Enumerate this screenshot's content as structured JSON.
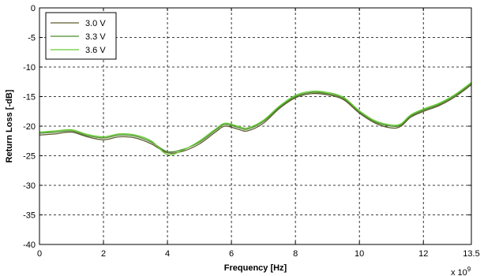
{
  "chart_data": {
    "type": "line",
    "title": "",
    "xlabel": "Frequency [Hz]",
    "ylabel": "Return Loss [-dB]",
    "x_exponent_label": "x 10",
    "x_exponent": "9",
    "xlim": [
      0,
      13.5
    ],
    "ylim": [
      -40,
      0
    ],
    "xticks": [
      "0",
      "2",
      "4",
      "6",
      "8",
      "10",
      "12",
      "13.5"
    ],
    "xtick_values": [
      0,
      2,
      4,
      6,
      8,
      10,
      12,
      13.5
    ],
    "yticks": [
      "0",
      "-5",
      "-10",
      "-15",
      "-20",
      "-25",
      "-30",
      "-35",
      "-40"
    ],
    "ytick_values": [
      0,
      -5,
      -10,
      -15,
      -20,
      -25,
      -30,
      -35,
      -40
    ],
    "grid": true,
    "legend_position": "top-left",
    "series": [
      {
        "name": "3.0 V",
        "color": "#5a5a2a",
        "x": [
          0,
          0.5,
          1.0,
          1.5,
          2.0,
          2.5,
          3.0,
          3.5,
          4.0,
          4.5,
          5.0,
          5.5,
          5.8,
          6.2,
          6.5,
          7.0,
          7.5,
          8.0,
          8.5,
          9.0,
          9.5,
          10.0,
          10.5,
          11.0,
          11.3,
          11.6,
          12.0,
          12.5,
          13.0,
          13.5
        ],
        "y": [
          -21.5,
          -21.3,
          -21.0,
          -21.8,
          -22.3,
          -21.8,
          -22.0,
          -23.0,
          -24.5,
          -24.2,
          -23.0,
          -21.0,
          -20.0,
          -20.5,
          -20.8,
          -19.5,
          -17.0,
          -15.2,
          -14.5,
          -14.7,
          -15.5,
          -17.8,
          -19.5,
          -20.3,
          -20.0,
          -18.5,
          -17.5,
          -16.5,
          -15.0,
          -13.0
        ]
      },
      {
        "name": "3.3 V",
        "color": "#4a8a2a",
        "x": [
          0,
          0.5,
          1.0,
          1.5,
          2.0,
          2.5,
          3.0,
          3.5,
          4.0,
          4.5,
          5.0,
          5.5,
          5.8,
          6.2,
          6.5,
          7.0,
          7.5,
          8.0,
          8.5,
          9.0,
          9.5,
          10.0,
          10.5,
          11.0,
          11.3,
          11.6,
          12.0,
          12.5,
          13.0,
          13.5
        ],
        "y": [
          -21.2,
          -21.0,
          -20.8,
          -21.6,
          -22.0,
          -21.5,
          -21.7,
          -22.7,
          -24.3,
          -23.9,
          -22.7,
          -20.7,
          -19.7,
          -20.2,
          -20.5,
          -19.2,
          -16.8,
          -15.0,
          -14.3,
          -14.5,
          -15.3,
          -17.6,
          -19.3,
          -20.0,
          -19.8,
          -18.3,
          -17.3,
          -16.3,
          -14.8,
          -12.8
        ]
      },
      {
        "name": "3.6 V",
        "color": "#66cc33",
        "x": [
          0,
          0.5,
          1.0,
          1.5,
          2.0,
          2.5,
          3.0,
          3.5,
          4.0,
          4.5,
          5.0,
          5.5,
          5.8,
          6.2,
          6.5,
          7.0,
          7.5,
          8.0,
          8.5,
          9.0,
          9.5,
          10.0,
          10.5,
          11.0,
          11.3,
          11.6,
          12.0,
          12.5,
          13.0,
          13.5
        ],
        "y": [
          -21.0,
          -20.8,
          -20.6,
          -21.4,
          -21.8,
          -21.3,
          -21.5,
          -22.5,
          -24.8,
          -24.0,
          -22.5,
          -20.5,
          -19.5,
          -20.0,
          -20.3,
          -19.0,
          -16.6,
          -14.8,
          -14.1,
          -14.3,
          -15.1,
          -17.4,
          -19.1,
          -19.8,
          -19.6,
          -18.1,
          -17.1,
          -16.1,
          -14.6,
          -12.6
        ]
      }
    ]
  }
}
